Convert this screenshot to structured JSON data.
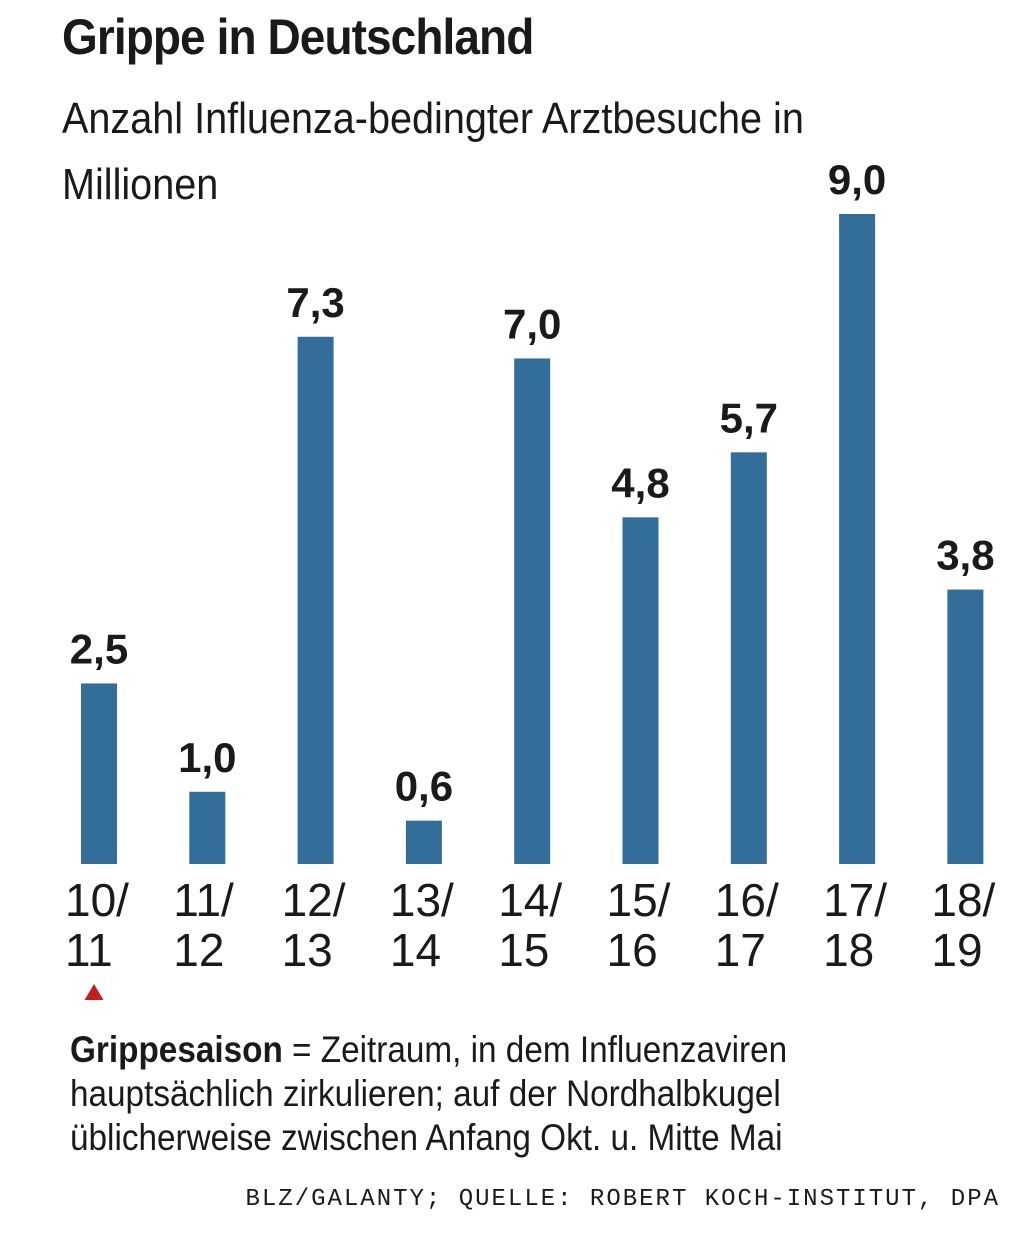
{
  "title": "Grippe in Deutschland",
  "subtitle": "Anzahl Influenza-bedingter Arztbesuche in Millionen",
  "chart_data": {
    "type": "bar",
    "title": "Grippe in Deutschland",
    "subtitle": "Anzahl Influenza-bedingter Arztbesuche in Millionen",
    "categories": [
      [
        "10/",
        "11"
      ],
      [
        "11/",
        "12"
      ],
      [
        "12/",
        "13"
      ],
      [
        "13/",
        "14"
      ],
      [
        "14/",
        "15"
      ],
      [
        "15/",
        "16"
      ],
      [
        "16/",
        "17"
      ],
      [
        "17/",
        "18"
      ],
      [
        "18/",
        "19"
      ]
    ],
    "values": [
      2.5,
      1.0,
      7.3,
      0.6,
      7.0,
      4.8,
      5.7,
      9.0,
      3.8
    ],
    "value_labels": [
      "2,5",
      "1,0",
      "7,3",
      "0,6",
      "7,0",
      "4,8",
      "5,7",
      "9,0",
      "3,8"
    ],
    "ylim": [
      0,
      9
    ],
    "grid": false,
    "legend": "none",
    "bar_color": "#336e9b",
    "marker_color": "#c0201b"
  },
  "footnote": {
    "term": "Grippesaison",
    "text": " = Zeitraum, in dem Influenzaviren hauptsächlich zirkulieren; auf der Nordhalbkugel üblicherweise zwischen Anfang Okt. u. Mitte Mai"
  },
  "source": "BLZ/GALANTY; QUELLE: ROBERT KOCH-INSTITUT, DPA"
}
